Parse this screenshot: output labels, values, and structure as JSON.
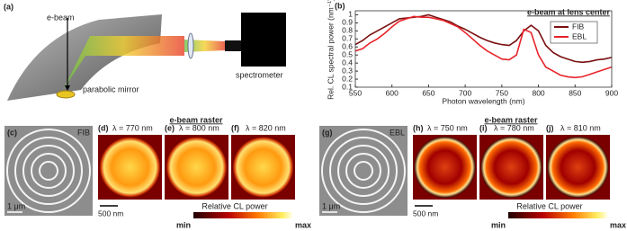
{
  "panel_a": {
    "label": "(a)",
    "e_beam": "e-beam",
    "mirror": "parabolic mirror",
    "spectrometer": "spectrometer"
  },
  "chart_data": {
    "type": "line",
    "panel_label": "(b)",
    "title": "e-beam at lens center",
    "x_label": "Photon wavelength (nm)",
    "y_label": "Rel. CL spectral power (nm⁻¹)",
    "x": [
      550,
      560,
      570,
      580,
      590,
      600,
      610,
      620,
      630,
      640,
      650,
      660,
      670,
      680,
      690,
      700,
      710,
      720,
      730,
      740,
      750,
      760,
      770,
      780,
      790,
      800,
      810,
      820,
      830,
      840,
      850,
      860,
      870,
      880,
      890,
      900
    ],
    "series": [
      {
        "name": "FIB",
        "color": "#7a1010",
        "values": [
          0.63,
          0.68,
          0.75,
          0.8,
          0.85,
          0.9,
          0.95,
          0.96,
          0.97,
          0.98,
          1.0,
          0.97,
          0.94,
          0.91,
          0.86,
          0.82,
          0.77,
          0.72,
          0.68,
          0.65,
          0.63,
          0.62,
          0.68,
          0.8,
          0.87,
          0.8,
          0.62,
          0.53,
          0.48,
          0.45,
          0.42,
          0.41,
          0.42,
          0.44,
          0.45,
          0.47
        ]
      },
      {
        "name": "EBL",
        "color": "#e8242a",
        "values": [
          0.55,
          0.58,
          0.65,
          0.7,
          0.77,
          0.85,
          0.92,
          0.95,
          0.98,
          0.97,
          0.97,
          0.95,
          0.93,
          0.89,
          0.85,
          0.78,
          0.7,
          0.62,
          0.55,
          0.5,
          0.45,
          0.44,
          0.5,
          0.82,
          0.78,
          0.5,
          0.35,
          0.3,
          0.25,
          0.23,
          0.22,
          0.23,
          0.26,
          0.29,
          0.32,
          0.35
        ]
      }
    ],
    "xlim": [
      550,
      900
    ],
    "xticks": [
      550,
      600,
      650,
      700,
      750,
      800,
      850,
      900
    ],
    "ylim": [
      0.1,
      1.05
    ],
    "yticks": [
      0.1,
      0.2,
      0.3,
      0.4,
      0.5,
      0.6,
      0.7,
      0.8,
      0.9,
      1
    ],
    "legend": "upper right"
  },
  "groups": [
    {
      "sem_label": "(c)",
      "sem_tag": "FIB",
      "sem_scale": "1 μm",
      "title": "e-beam raster",
      "maps": [
        {
          "tag": "(d)",
          "text": "λ = 770 nm"
        },
        {
          "tag": "(e)",
          "text": "λ = 800 nm"
        },
        {
          "tag": "(f)",
          "text": "λ = 820 nm"
        }
      ],
      "map_scale": "500 nm",
      "colorbar": {
        "title": "Relative CL power",
        "min": "min",
        "max": "max"
      }
    },
    {
      "sem_label": "(g)",
      "sem_tag": "EBL",
      "sem_scale": "1 μm",
      "title": "e-beam raster",
      "maps": [
        {
          "tag": "(h)",
          "text": "λ = 750 nm"
        },
        {
          "tag": "(i)",
          "text": "λ = 780 nm"
        },
        {
          "tag": "(j)",
          "text": "λ = 810 nm"
        }
      ],
      "map_scale": "500 nm",
      "colorbar": {
        "title": "Relative CL power",
        "min": "min",
        "max": "max"
      }
    }
  ]
}
